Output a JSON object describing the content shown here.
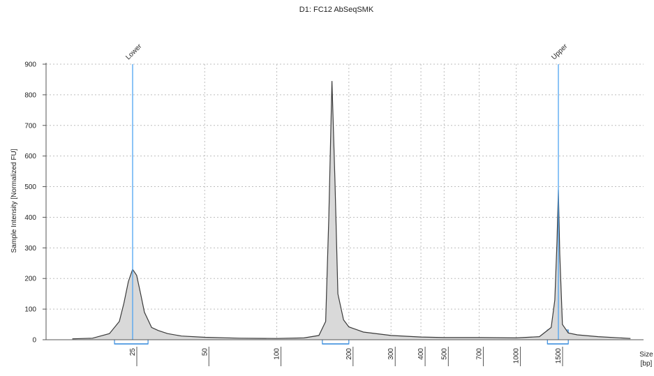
{
  "chart_data": {
    "type": "line",
    "title": "D1: FC12 AbSeqSMK",
    "ylabel": "Sample Intensity [Normalized FU]",
    "xlabel": "Size\n[bp]",
    "xlabel_line1": "Size",
    "xlabel_line2": "[bp]",
    "ylim": [
      0,
      900
    ],
    "yticks": [
      0,
      100,
      200,
      300,
      400,
      500,
      600,
      700,
      800,
      900
    ],
    "xticks": [
      "25",
      "50",
      "100",
      "200",
      "300",
      "400",
      "500",
      "700",
      "1000",
      "1500"
    ],
    "xscale": "log",
    "grid": true,
    "markers": [
      {
        "name": "Lower",
        "x_bp": 25
      },
      {
        "name": "Upper",
        "x_bp": 1500
      }
    ],
    "peaks": [
      {
        "x_bp": 25,
        "y": 230
      },
      {
        "x_bp": 170,
        "y": 845
      },
      {
        "x_bp": 1500,
        "y": 490
      }
    ],
    "series": [
      {
        "x": [
          14,
          17,
          20,
          22,
          23,
          24,
          25,
          26,
          27,
          28,
          30,
          32,
          35,
          40,
          50,
          70,
          100,
          130,
          150,
          160,
          165,
          170,
          175,
          180,
          190,
          200,
          230,
          300,
          400,
          500,
          700,
          1000,
          1250,
          1400,
          1450,
          1480,
          1500,
          1520,
          1560,
          1650,
          1800,
          2200,
          3000
        ],
        "y": [
          3,
          5,
          20,
          60,
          120,
          190,
          230,
          210,
          150,
          90,
          40,
          30,
          20,
          12,
          8,
          5,
          4,
          6,
          14,
          60,
          400,
          845,
          520,
          150,
          65,
          42,
          25,
          14,
          9,
          7,
          7,
          6,
          10,
          40,
          130,
          320,
          490,
          280,
          50,
          22,
          16,
          10,
          4
        ]
      }
    ],
    "regions": [
      {
        "from_bp": 21,
        "to_bp": 29
      },
      {
        "from_bp": 155,
        "to_bp": 200
      },
      {
        "from_bp": 1350,
        "to_bp": 1650
      }
    ]
  }
}
